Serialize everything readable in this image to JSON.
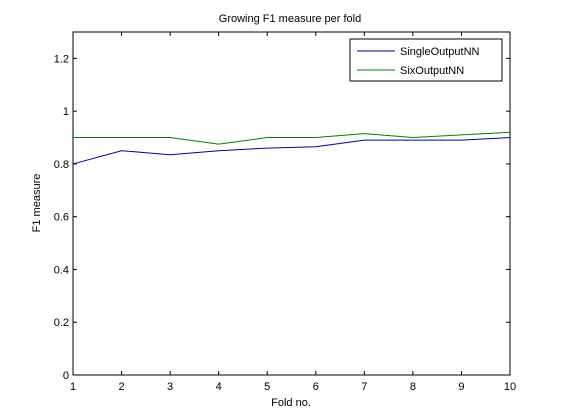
{
  "chart_data": {
    "type": "line",
    "title": "Growing F1 measure per fold",
    "xlabel": "Fold no.",
    "ylabel": "F1 measure",
    "x": [
      1,
      2,
      3,
      4,
      5,
      6,
      7,
      8,
      9,
      10
    ],
    "xticks": [
      "1",
      "2",
      "3",
      "4",
      "5",
      "6",
      "7",
      "8",
      "9",
      "10"
    ],
    "yticks": [
      "0",
      "0.2",
      "0.4",
      "0.6",
      "0.8",
      "1",
      "1.2"
    ],
    "xlim": [
      1,
      10
    ],
    "ylim": [
      0,
      1.3
    ],
    "grid": false,
    "legend_position": "top-right",
    "series": [
      {
        "name": "SingleOutputNN",
        "color": "#0000a0",
        "values": [
          0.8,
          0.85,
          0.835,
          0.85,
          0.86,
          0.865,
          0.89,
          0.89,
          0.89,
          0.9
        ]
      },
      {
        "name": "SixOutputNN",
        "color": "#008000",
        "values": [
          0.9,
          0.9,
          0.9,
          0.875,
          0.9,
          0.9,
          0.915,
          0.9,
          0.91,
          0.92
        ]
      }
    ]
  }
}
